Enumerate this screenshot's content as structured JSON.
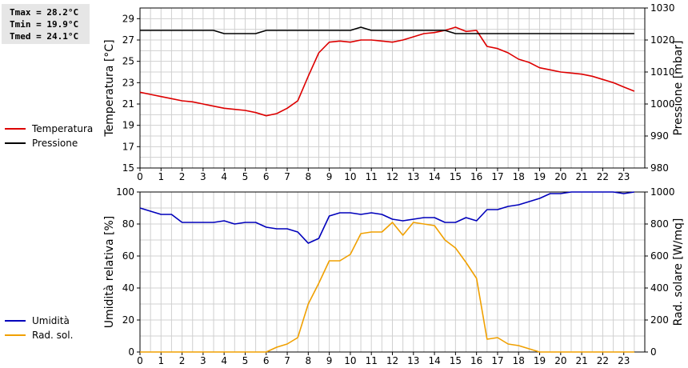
{
  "stats": {
    "tmax": "Tmax = 28.2°C",
    "tmin": "Tmin = 19.9°C",
    "tmed": "Tmed = 24.1°C"
  },
  "legend_top": [
    {
      "label": "Temperatura",
      "color": "#dd0000"
    },
    {
      "label": "Pressione",
      "color": "#000000"
    }
  ],
  "legend_bottom": [
    {
      "label": "Umidità",
      "color": "#0000bb"
    },
    {
      "label": "Rad. sol.",
      "color": "#f0a000"
    }
  ],
  "chart_data": [
    {
      "type": "line",
      "xlabel": "",
      "ylabel_left": "Temperatura [°C]",
      "ylabel_right": "Pressione [mbar]",
      "xlim": [
        0,
        24
      ],
      "ylim_left": [
        15,
        30
      ],
      "ylim_right": [
        980,
        1030
      ],
      "xticks": [
        "0",
        "1",
        "2",
        "3",
        "4",
        "5",
        "6",
        "7",
        "8",
        "9",
        "10",
        "11",
        "12",
        "13",
        "14",
        "15",
        "16",
        "17",
        "18",
        "19",
        "20",
        "21",
        "22",
        "23"
      ],
      "yticks_left": [
        "15",
        "17",
        "19",
        "21",
        "23",
        "25",
        "27",
        "29"
      ],
      "yticks_right": [
        "980",
        "990",
        "1000",
        "1010",
        "1020",
        "1030"
      ],
      "grid": true,
      "series": [
        {
          "name": "Temperatura",
          "axis": "left",
          "color": "#dd0000",
          "x": [
            0,
            0.5,
            1,
            1.5,
            2,
            2.5,
            3,
            3.5,
            4,
            4.5,
            5,
            5.5,
            6,
            6.5,
            7,
            7.5,
            8,
            8.5,
            9,
            9.5,
            10,
            10.5,
            11,
            11.5,
            12,
            12.5,
            13,
            13.5,
            14,
            14.5,
            15,
            15.5,
            16,
            16.5,
            17,
            17.5,
            18,
            18.5,
            19,
            19.5,
            20,
            20.5,
            21,
            21.5,
            22,
            22.5,
            23,
            23.5
          ],
          "y": [
            22.1,
            21.9,
            21.7,
            21.5,
            21.3,
            21.2,
            21.0,
            20.8,
            20.6,
            20.5,
            20.4,
            20.2,
            19.9,
            20.1,
            20.6,
            21.3,
            23.6,
            25.8,
            26.8,
            26.9,
            26.8,
            27.0,
            27.0,
            26.9,
            26.8,
            27.0,
            27.3,
            27.6,
            27.7,
            27.9,
            28.2,
            27.8,
            27.9,
            26.4,
            26.2,
            25.8,
            25.2,
            24.9,
            24.4,
            24.2,
            24.0,
            23.9,
            23.8,
            23.6,
            23.3,
            23.0,
            22.6,
            22.2
          ]
        },
        {
          "name": "Pressione",
          "axis": "right",
          "color": "#000000",
          "x": [
            0,
            3.5,
            4,
            5.5,
            6,
            10,
            10.5,
            11,
            14.5,
            15,
            23.5
          ],
          "y": [
            1023,
            1023,
            1022,
            1022,
            1023,
            1023,
            1024,
            1023,
            1023,
            1022,
            1022
          ]
        }
      ]
    },
    {
      "type": "line",
      "xlabel": "",
      "ylabel_left": "Umidità relativa [%]",
      "ylabel_right": "Rad. solare [W/mq]",
      "xlim": [
        0,
        24
      ],
      "ylim_left": [
        0,
        100
      ],
      "ylim_right": [
        0,
        1000
      ],
      "xticks": [
        "0",
        "1",
        "2",
        "3",
        "4",
        "5",
        "6",
        "7",
        "8",
        "9",
        "10",
        "11",
        "12",
        "13",
        "14",
        "15",
        "16",
        "17",
        "18",
        "19",
        "20",
        "21",
        "22",
        "23"
      ],
      "yticks_left": [
        "0",
        "20",
        "40",
        "60",
        "80",
        "100"
      ],
      "yticks_right": [
        "0",
        "200",
        "400",
        "600",
        "800",
        "1000"
      ],
      "grid": true,
      "series": [
        {
          "name": "Umidità",
          "axis": "left",
          "color": "#0000bb",
          "x": [
            0,
            0.5,
            1,
            1.5,
            2,
            2.5,
            3,
            3.5,
            4,
            4.5,
            5,
            5.5,
            6,
            6.5,
            7,
            7.5,
            8,
            8.5,
            9,
            9.5,
            10,
            10.5,
            11,
            11.5,
            12,
            12.5,
            13,
            13.5,
            14,
            14.5,
            15,
            15.5,
            16,
            16.5,
            17,
            17.5,
            18,
            18.5,
            19,
            19.5,
            20,
            20.5,
            21,
            21.5,
            22,
            22.5,
            23,
            23.5
          ],
          "y": [
            90,
            88,
            86,
            86,
            81,
            81,
            81,
            81,
            82,
            80,
            81,
            81,
            78,
            77,
            77,
            75,
            68,
            71,
            85,
            87,
            87,
            86,
            87,
            86,
            83,
            82,
            83,
            84,
            84,
            81,
            81,
            84,
            82,
            89,
            89,
            91,
            92,
            94,
            96,
            99,
            99,
            100,
            100,
            100,
            100,
            100,
            99,
            100
          ]
        },
        {
          "name": "Rad. sol.",
          "axis": "right",
          "color": "#f0a000",
          "x": [
            0,
            6,
            6.5,
            7,
            7.5,
            8,
            8.5,
            9,
            9.5,
            10,
            10.5,
            11,
            11.5,
            12,
            12.5,
            13,
            13.5,
            14,
            14.5,
            15,
            15.5,
            16,
            16.5,
            17,
            17.5,
            18,
            18.5,
            19,
            19.5,
            23.5
          ],
          "y": [
            0,
            0,
            30,
            50,
            90,
            300,
            430,
            570,
            570,
            610,
            740,
            750,
            750,
            810,
            730,
            810,
            800,
            790,
            700,
            650,
            560,
            460,
            80,
            90,
            50,
            40,
            20,
            0,
            0,
            0
          ]
        }
      ]
    }
  ]
}
